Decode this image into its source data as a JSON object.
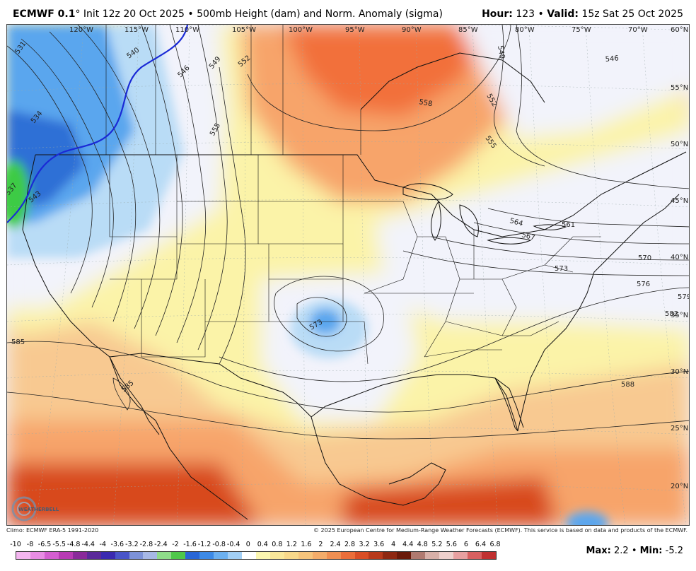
{
  "header": {
    "model": "ECMWF 0.1",
    "degree": "°",
    "init": "Init 12z 20 Oct 2025",
    "bullet": "•",
    "product": "500mb Height (dam) and Norm. Anomaly (sigma)",
    "hour_label": "Hour:",
    "hour_value": "123",
    "valid_label": "Valid:",
    "valid_value": "15z Sat 25 Oct 2025"
  },
  "map": {
    "longitude_labels": [
      "120°W",
      "115°W",
      "110°W",
      "105°W",
      "100°W",
      "95°W",
      "90°W",
      "85°W",
      "80°W",
      "75°W",
      "70°W"
    ],
    "latitude_labels": [
      "60°N",
      "55°N",
      "50°N",
      "45°N",
      "40°N",
      "35°N",
      "30°N",
      "25°N",
      "20°N"
    ],
    "contour_labels": [
      "531",
      "534",
      "537",
      "540",
      "543",
      "546",
      "549",
      "552",
      "555",
      "558",
      "549",
      "552",
      "555",
      "546",
      "564",
      "567",
      "561",
      "570",
      "573",
      "576",
      "579",
      "582",
      "585",
      "585",
      "573",
      "588"
    ],
    "colors": {
      "deep_red": "#d84a1c",
      "orange": "#f2703a",
      "light_orange": "#f7a46b",
      "peach": "#f8c991",
      "yellow": "#fbf3a8",
      "near_zero": "#f2f3fb",
      "light_blue": "#b9dcf6",
      "blue": "#5aa6ee",
      "dark_blue": "#2f6fd6",
      "green": "#3ecb45",
      "blue_contour": "#1a2ad6"
    }
  },
  "footer": {
    "climo": "Climo: ECMWF ERA-5 1991-2020",
    "copyright": "© 2025 European Centre for Medium-Range Weather Forecasts (ECMWF). This service is based on data and products of the ECMWF."
  },
  "colorbar": {
    "labels": [
      "-10",
      "-8",
      "-6.5",
      "-5.5",
      "-4.8",
      "-4.4",
      "-4",
      "-3.6",
      "-3.2",
      "-2.8",
      "-2.4",
      "-2",
      "-1.6",
      "-1.2",
      "-0.8",
      "-0.4",
      "0",
      "0.4",
      "0.8",
      "1.2",
      "1.6",
      "2",
      "2.4",
      "2.8",
      "3.2",
      "3.6",
      "4",
      "4.4",
      "4.8",
      "5.2",
      "5.6",
      "6",
      "6.4",
      "6.8"
    ],
    "colors": [
      "#f4b6f0",
      "#e88de4",
      "#d45fd0",
      "#b83bb4",
      "#8a2a9a",
      "#5b2a9a",
      "#3b2ab0",
      "#4a55c8",
      "#7d92d8",
      "#a7b8e6",
      "#8fdc8a",
      "#4fc84a",
      "#2a66d6",
      "#3d8ae6",
      "#6cb0ef",
      "#a2cff5",
      "#ffffff",
      "#fbf6b0",
      "#f9e79a",
      "#f8d88a",
      "#f6c47c",
      "#f4ac6a",
      "#f08f52",
      "#eb6e3a",
      "#d94e26",
      "#b83a1c",
      "#8e2812",
      "#6a1a0a",
      "#b07a70",
      "#d8b0a8",
      "#eed0cc",
      "#e8a0a0",
      "#d86060",
      "#c03030"
    ]
  },
  "stats": {
    "max_label": "Max:",
    "max_value": "2.2",
    "bullet": "•",
    "min_label": "Min:",
    "min_value": "-5.2"
  },
  "logo": {
    "text": "WEATHERBELL"
  }
}
